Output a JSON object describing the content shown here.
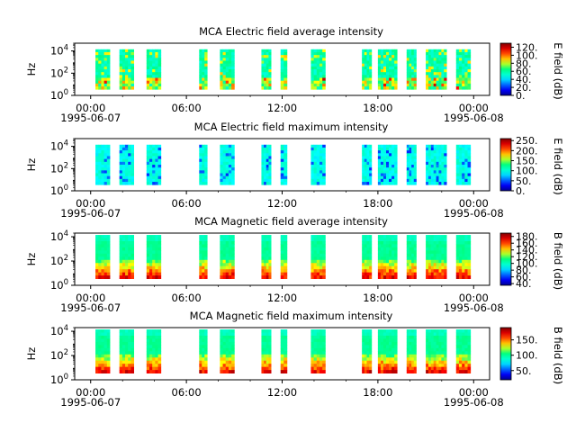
{
  "figure": {
    "x_ticks": [
      "00:00",
      "06:00",
      "12:00",
      "18:00",
      "00:00"
    ],
    "x_tick_hours": [
      0,
      6,
      12,
      18,
      24
    ],
    "x_dates": [
      "1995-06-07",
      "1995-06-08"
    ],
    "y_label": "Hz",
    "y_tick_exponents": [
      0,
      2,
      4
    ],
    "y_tick_base": "10"
  },
  "chart_data": [
    {
      "type": "heatmap",
      "title": "MCA  Electric field average intensity",
      "ylabel": "Hz",
      "yscale": "log",
      "ylim": [
        1,
        50000
      ],
      "xlim_hours": [
        -1,
        25
      ],
      "colorbar_label": "E field (dB)",
      "colorbar_ticks": [
        "0.",
        "20.",
        "40.",
        "60.",
        "80.",
        "100.",
        "120."
      ],
      "colorbar_range": [
        0,
        130
      ],
      "style": "avg",
      "data_blocks_hours": [
        [
          0.3,
          1.2
        ],
        [
          1.8,
          2.7
        ],
        [
          3.5,
          4.4
        ],
        [
          6.8,
          7.3
        ],
        [
          8.1,
          9.0
        ],
        [
          10.7,
          11.3
        ],
        [
          11.9,
          12.3
        ],
        [
          13.8,
          14.7
        ],
        [
          17.0,
          17.6
        ],
        [
          18.0,
          19.2
        ],
        [
          19.8,
          20.4
        ],
        [
          21.0,
          22.3
        ],
        [
          22.9,
          23.8
        ]
      ]
    },
    {
      "type": "heatmap",
      "title": "MCA  Electric field maximum intensity",
      "ylabel": "Hz",
      "yscale": "log",
      "ylim": [
        1,
        50000
      ],
      "xlim_hours": [
        -1,
        25
      ],
      "colorbar_label": "E field (dB)",
      "colorbar_ticks": [
        "0.",
        "50.",
        "100.",
        "150.",
        "200.",
        "250."
      ],
      "colorbar_range": [
        0,
        260
      ],
      "style": "max",
      "data_blocks_hours": [
        [
          0.3,
          1.2
        ],
        [
          1.8,
          2.7
        ],
        [
          3.5,
          4.4
        ],
        [
          6.8,
          7.3
        ],
        [
          8.1,
          9.0
        ],
        [
          10.7,
          11.3
        ],
        [
          11.9,
          12.3
        ],
        [
          13.8,
          14.7
        ],
        [
          17.0,
          17.6
        ],
        [
          18.0,
          19.2
        ],
        [
          19.8,
          20.4
        ],
        [
          21.0,
          22.3
        ],
        [
          22.9,
          23.8
        ]
      ]
    },
    {
      "type": "heatmap",
      "title": "MCA  Magnetic field average intensity",
      "ylabel": "Hz",
      "yscale": "log",
      "ylim": [
        1,
        20000
      ],
      "xlim_hours": [
        -1,
        25
      ],
      "colorbar_label": "B field (dB)",
      "colorbar_ticks": [
        "40.",
        "60.",
        "80.",
        "100.",
        "120.",
        "140.",
        "160.",
        "180."
      ],
      "colorbar_range": [
        35,
        190
      ],
      "style": "mag",
      "data_blocks_hours": [
        [
          0.3,
          1.2
        ],
        [
          1.8,
          2.7
        ],
        [
          3.5,
          4.4
        ],
        [
          6.8,
          7.3
        ],
        [
          8.1,
          9.0
        ],
        [
          10.7,
          11.3
        ],
        [
          11.9,
          12.3
        ],
        [
          13.8,
          14.7
        ],
        [
          17.0,
          17.6
        ],
        [
          18.0,
          19.2
        ],
        [
          19.8,
          20.4
        ],
        [
          21.0,
          22.3
        ],
        [
          22.9,
          23.8
        ]
      ]
    },
    {
      "type": "heatmap",
      "title": "MCA  Magnetic field maximum intensity",
      "ylabel": "Hz",
      "yscale": "log",
      "ylim": [
        1,
        20000
      ],
      "xlim_hours": [
        -1,
        25
      ],
      "colorbar_label": "B field (dB)",
      "colorbar_ticks": [
        "50.",
        "100.",
        "150."
      ],
      "colorbar_range": [
        20,
        190
      ],
      "style": "mag",
      "data_blocks_hours": [
        [
          0.3,
          1.2
        ],
        [
          1.8,
          2.7
        ],
        [
          3.5,
          4.4
        ],
        [
          6.8,
          7.3
        ],
        [
          8.1,
          9.0
        ],
        [
          10.7,
          11.3
        ],
        [
          11.9,
          12.3
        ],
        [
          13.8,
          14.7
        ],
        [
          17.0,
          17.6
        ],
        [
          18.0,
          19.2
        ],
        [
          19.8,
          20.4
        ],
        [
          21.0,
          22.3
        ],
        [
          22.9,
          23.8
        ]
      ]
    }
  ]
}
